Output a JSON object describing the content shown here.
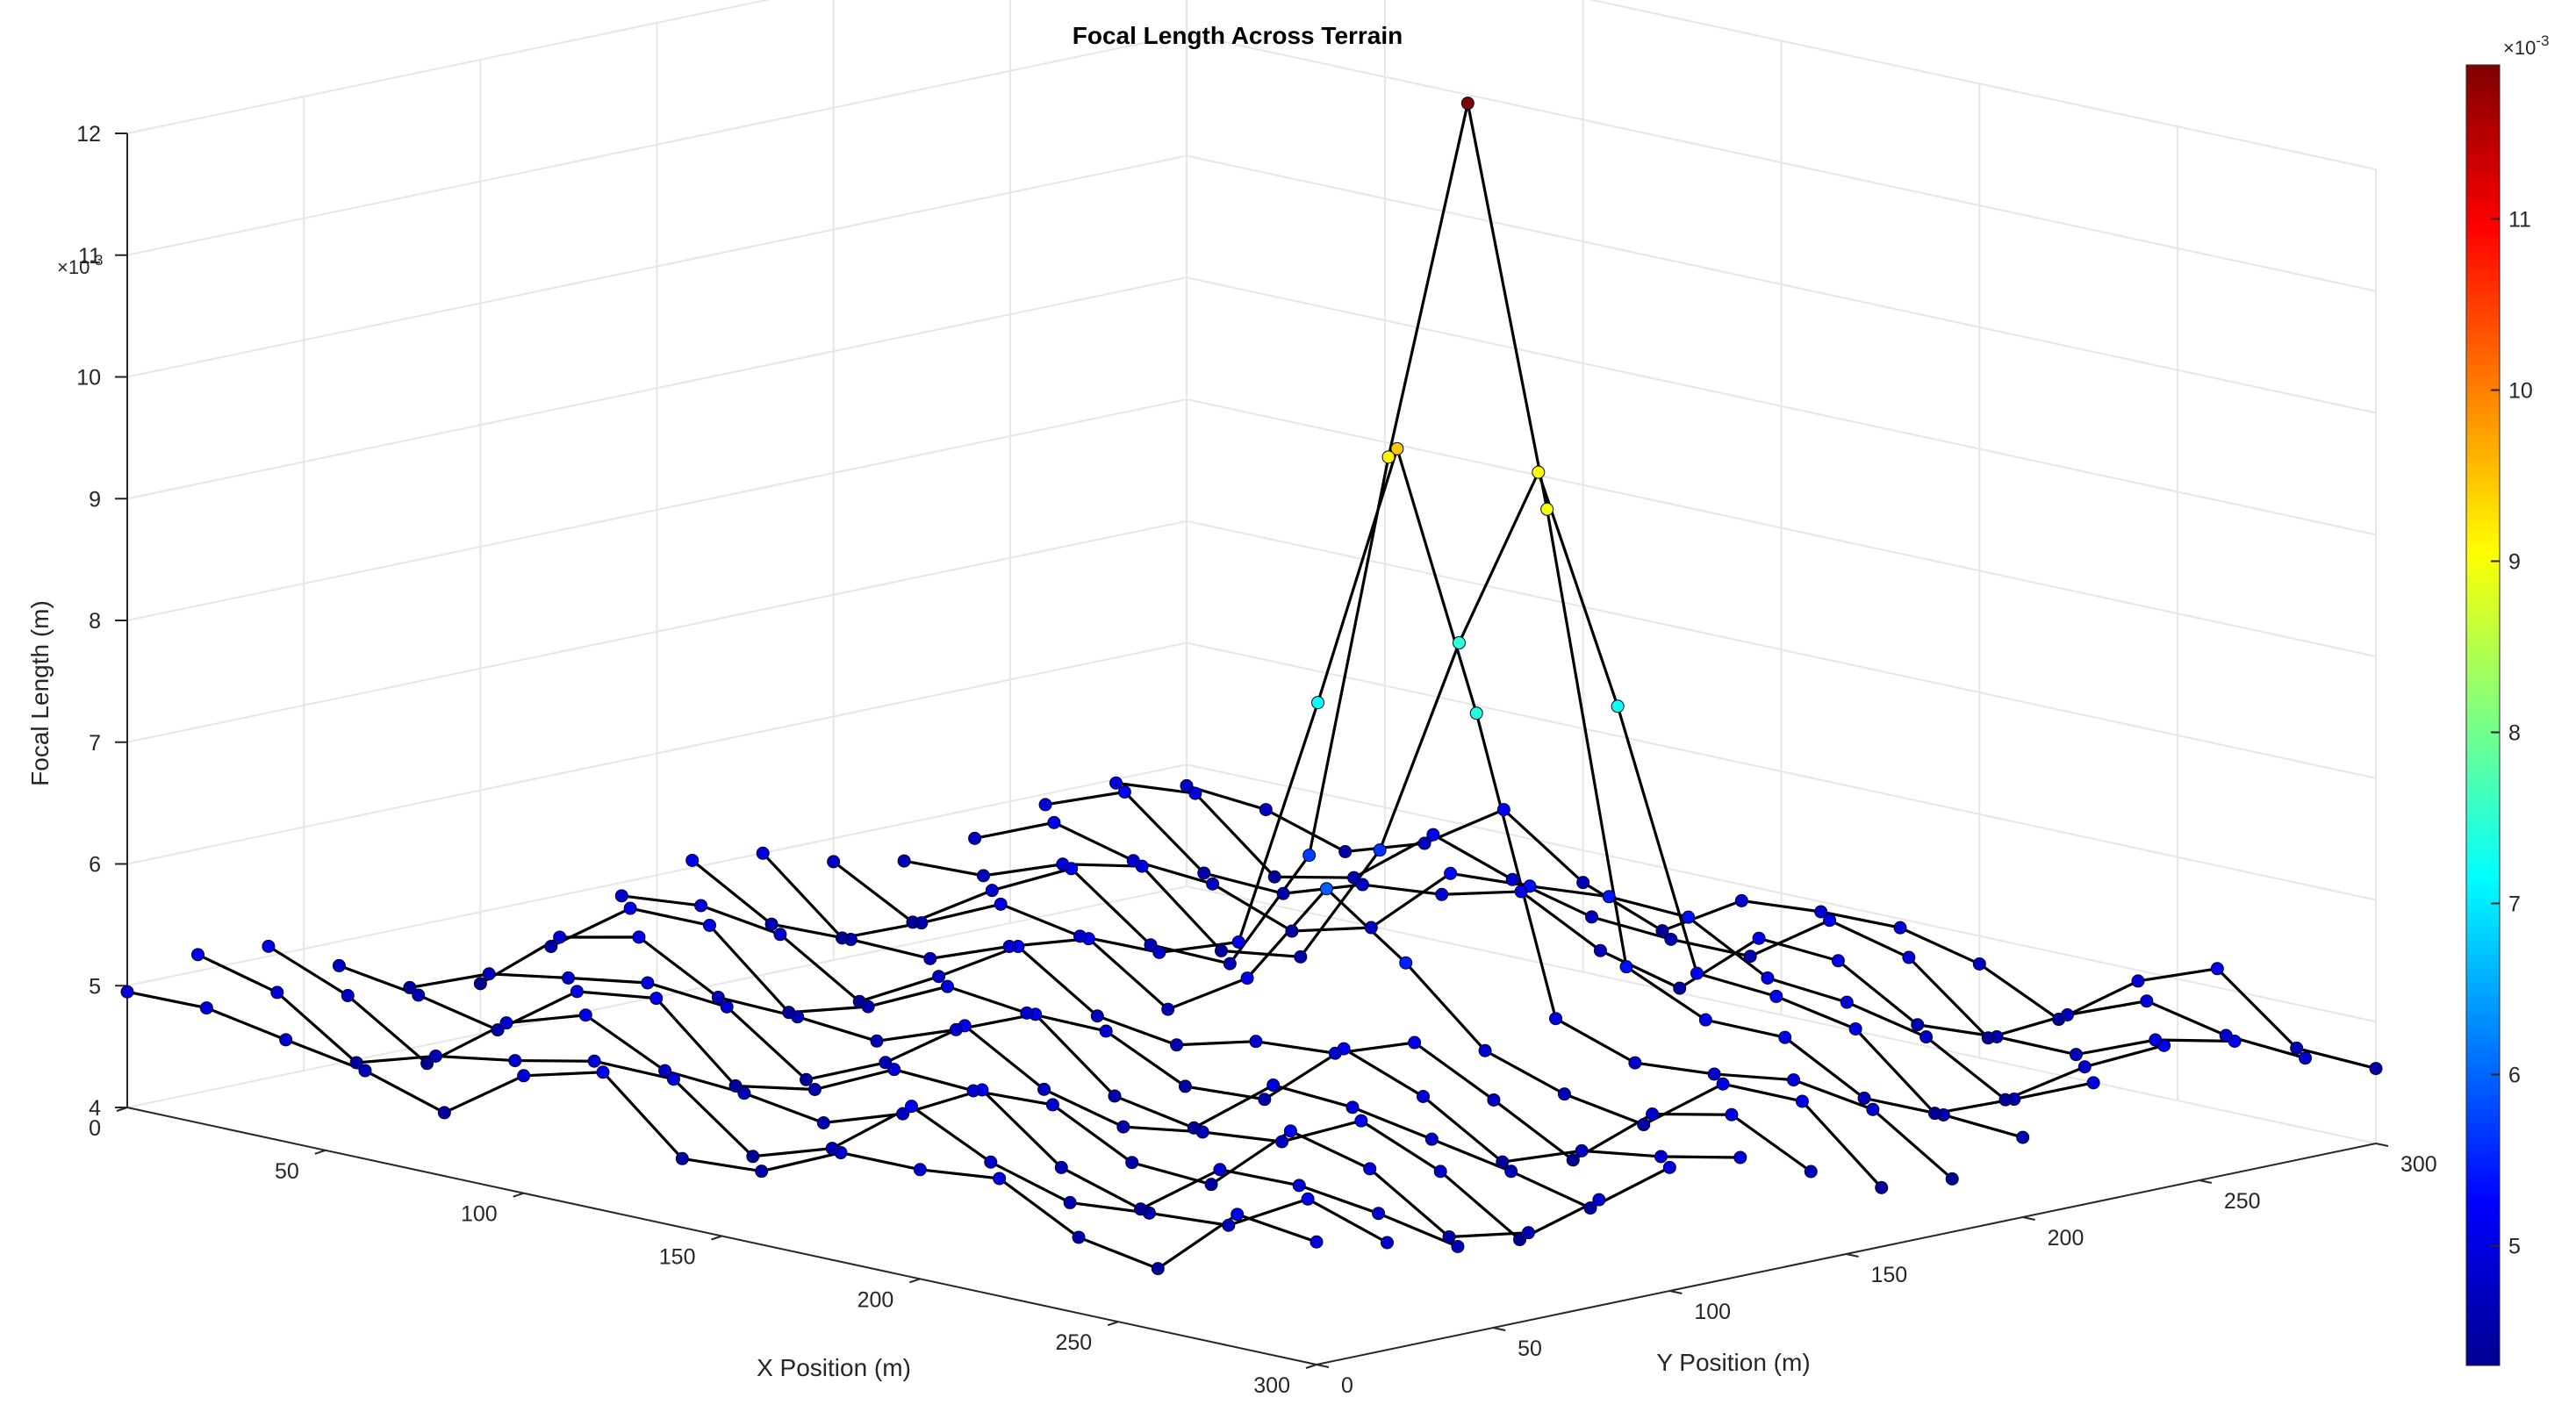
{
  "figure": {
    "title": "Focal Length Across Terrain"
  },
  "chart_data": {
    "type": "scatter3d-wireframe",
    "title": "Focal Length Across Terrain",
    "xlabel": "X Position (m)",
    "ylabel": "Y Position (m)",
    "zlabel": "Focal Length (m)",
    "z_exponent_label": "×10^-3",
    "xlim": [
      0,
      300
    ],
    "ylim": [
      0,
      300
    ],
    "zlim": [
      0.004,
      0.012
    ],
    "x_ticks": [
      "0",
      "50",
      "100",
      "150",
      "200",
      "250",
      "300"
    ],
    "y_ticks": [
      "0",
      "50",
      "100",
      "150",
      "200",
      "250",
      "300"
    ],
    "z_ticks": [
      "4",
      "5",
      "6",
      "7",
      "8",
      "9",
      "10",
      "11",
      "12"
    ],
    "grid": true,
    "line_color": "#000000",
    "colormap": "jet",
    "colorbar": {
      "ticks": [
        "5",
        "6",
        "7",
        "8",
        "9",
        "10",
        "11"
      ],
      "exponent_label": "×10^-3",
      "range": [
        0.0043,
        0.0119
      ]
    },
    "x": [
      0,
      20,
      40,
      60,
      80,
      100,
      120,
      140,
      160,
      180,
      200,
      220,
      240,
      260,
      280,
      300
    ],
    "y": [
      0,
      20,
      40,
      60,
      80,
      100,
      120,
      140,
      160,
      180,
      200,
      220,
      240,
      260,
      280,
      300
    ],
    "z_baseline": 0.0048,
    "peak": {
      "x": 160,
      "y": 200,
      "z": 0.0119
    }
  }
}
